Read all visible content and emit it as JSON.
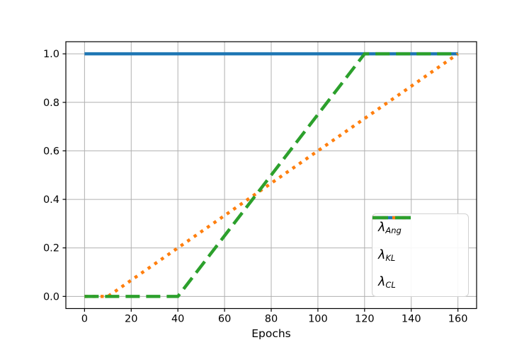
{
  "figure": {
    "background": "#ffffff"
  },
  "chart_data": {
    "type": "line",
    "title": "",
    "xlabel": "Epochs",
    "ylabel": "",
    "xlim": [
      -8,
      168
    ],
    "ylim": [
      -0.05,
      1.05
    ],
    "xticks": [
      0,
      20,
      40,
      60,
      80,
      100,
      120,
      140,
      160
    ],
    "xtick_labels": [
      "0",
      "20",
      "40",
      "60",
      "80",
      "100",
      "120",
      "140",
      "160"
    ],
    "yticks": [
      0.0,
      0.2,
      0.4,
      0.6,
      0.8,
      1.0
    ],
    "ytick_labels": [
      "0.0",
      "0.2",
      "0.4",
      "0.6",
      "0.8",
      "1.0"
    ],
    "grid": true,
    "grid_color": "#b0b0b0",
    "spine_color": "#000000",
    "tick_label_color": "#000000",
    "legend_position": "lower right",
    "series": [
      {
        "name": "lambda-ang",
        "label_main": "λ",
        "label_sub": "Ang",
        "color": "#1f77b4",
        "style": "solid",
        "linewidth": 4.5,
        "points": [
          [
            0,
            1.0
          ],
          [
            160,
            1.0
          ]
        ]
      },
      {
        "name": "lambda-kl",
        "label_main": "λ",
        "label_sub": "KL",
        "color": "#ff7f0e",
        "style": "dotted",
        "linewidth": 4.5,
        "points": [
          [
            0,
            0.0
          ],
          [
            10,
            0.0
          ],
          [
            160,
            1.0
          ]
        ]
      },
      {
        "name": "lambda-cl",
        "label_main": "λ",
        "label_sub": "CL",
        "color": "#2ca02c",
        "style": "dashed",
        "linewidth": 4.5,
        "points": [
          [
            0,
            0.0
          ],
          [
            40,
            0.0
          ],
          [
            120,
            1.0
          ],
          [
            160,
            1.0
          ]
        ]
      }
    ]
  }
}
